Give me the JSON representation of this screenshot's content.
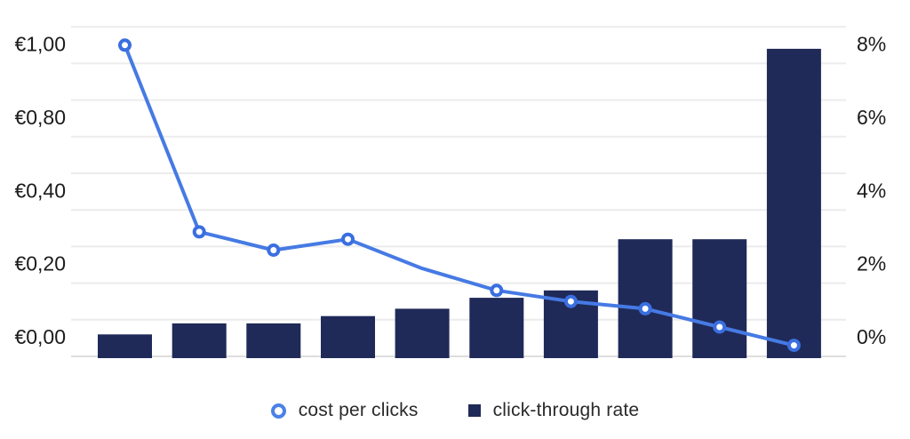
{
  "chart_data": {
    "type": "combo",
    "title": "",
    "num_points": 10,
    "x_axis": {
      "labels_visible": false
    },
    "series": [
      {
        "name": "cost per clicks",
        "type": "line",
        "axis": "left",
        "values": [
          1.05,
          0.34,
          0.29,
          0.32,
          0.24,
          0.18,
          0.15,
          0.13,
          0.08,
          0.03
        ],
        "markers": [
          true,
          true,
          true,
          true,
          false,
          true,
          true,
          true,
          true,
          true
        ]
      },
      {
        "name": "click-through rate",
        "type": "bar",
        "axis": "right",
        "values": [
          0.6,
          0.9,
          0.9,
          1.1,
          1.3,
          1.6,
          1.8,
          3.2,
          3.2,
          8.4
        ]
      }
    ],
    "left_axis": {
      "unit": "EUR",
      "tick_labels": [
        "€1,00",
        "€0,80",
        "€0,40",
        "€0,20",
        "€0,00"
      ],
      "tick_values": [
        1.0,
        0.8,
        0.4,
        0.2,
        0.0
      ],
      "tick_gridline_index": [
        8,
        6,
        4,
        2,
        0
      ]
    },
    "right_axis": {
      "unit": "percent",
      "tick_labels": [
        "8%",
        "6%",
        "4%",
        "2%",
        "0%"
      ],
      "tick_values": [
        8,
        6,
        4,
        2,
        0
      ],
      "tick_gridline_index": [
        8,
        6,
        4,
        2,
        0
      ],
      "range_per_gridline": 1,
      "gridline_count": 10
    },
    "grid": true,
    "legend_position": "bottom"
  },
  "legend": {
    "entries": [
      {
        "label": "cost per clicks",
        "marker": "circle-outline"
      },
      {
        "label": "click-through rate",
        "marker": "square"
      }
    ]
  },
  "colors": {
    "line": "#467ae4",
    "marker_ring": "#3a6fe0",
    "marker_fill": "#ffffff",
    "bar": "#1f2a58",
    "grid": "#ececec",
    "axis_line": "#dedede",
    "axis_text": "#1b1b1b",
    "background": "#ffffff"
  }
}
